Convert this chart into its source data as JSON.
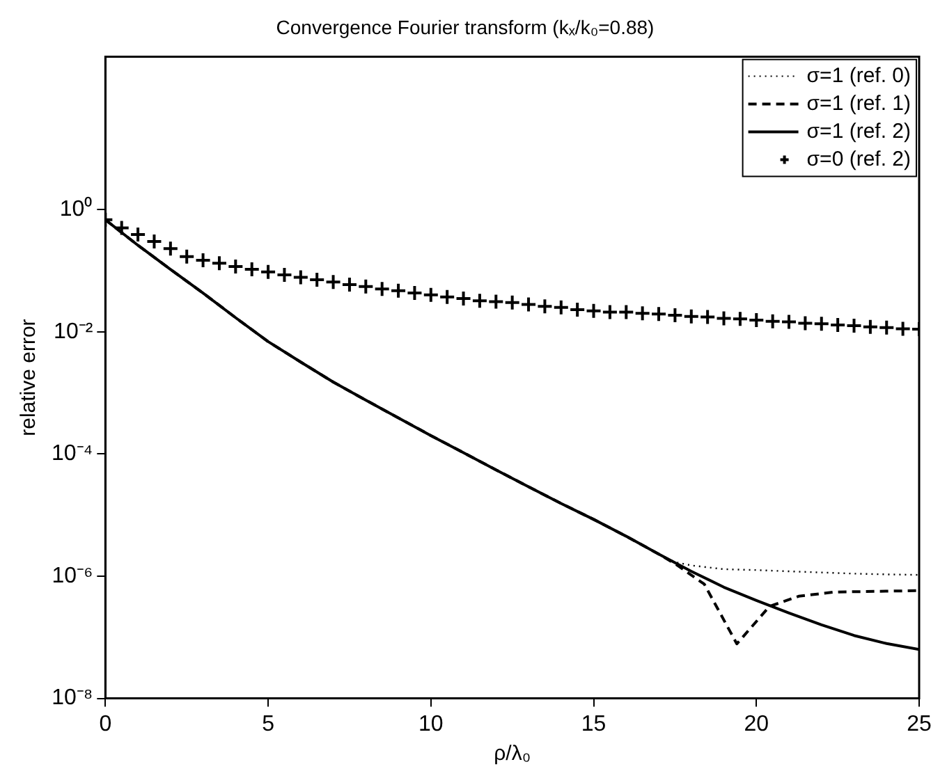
{
  "chart_data": {
    "type": "line",
    "title": "Convergence Fourier transform (kₓ/k₀=0.88)",
    "xlabel": "ρ/λ₀",
    "ylabel": "relative error",
    "log": "y",
    "grid": false,
    "legend": "top right",
    "xlim": [
      0,
      25
    ],
    "xticks": [
      0,
      5,
      10,
      15,
      20,
      25
    ],
    "ylim": [
      1e-08,
      316
    ],
    "yticks": [
      {
        "value": 1e-08,
        "label": "10⁻⁸"
      },
      {
        "value": 1e-06,
        "label": "10⁻⁶"
      },
      {
        "value": 0.0001,
        "label": "10⁻⁴"
      },
      {
        "value": 0.01,
        "label": "10⁻²"
      },
      {
        "value": 1,
        "label": "10⁰"
      }
    ],
    "series": [
      {
        "name": "σ=1 (ref. 0)",
        "line_style": "dotted",
        "marker": "none",
        "color": "#000000",
        "x": [
          0,
          1,
          2,
          3,
          4,
          5,
          6,
          7,
          8,
          9,
          10,
          11,
          12,
          13,
          14,
          15,
          16,
          17,
          17.5,
          18,
          19,
          20,
          21,
          22,
          23,
          24,
          25
        ],
        "values": [
          0.68,
          0.26,
          0.105,
          0.043,
          0.017,
          0.0069,
          0.0032,
          0.0015,
          0.00076,
          0.00039,
          0.0002,
          0.000105,
          5.5e-05,
          2.9e-05,
          1.55e-05,
          8.5e-06,
          4.5e-06,
          2.3e-06,
          1.7e-06,
          1.5e-06,
          1.3e-06,
          1.26e-06,
          1.2e-06,
          1.15e-06,
          1.1e-06,
          1.07e-06,
          1.05e-06
        ]
      },
      {
        "name": "σ=1 (ref. 1)",
        "line_style": "dashed",
        "marker": "none",
        "color": "#000000",
        "x": [
          0,
          1,
          2,
          3,
          4,
          5,
          6,
          7,
          8,
          9,
          10,
          11,
          12,
          13,
          14,
          15,
          16,
          17,
          17.5,
          18.4,
          19.4,
          20.4,
          21.3,
          22.4,
          25
        ],
        "values": [
          0.68,
          0.26,
          0.105,
          0.043,
          0.017,
          0.0069,
          0.0032,
          0.0015,
          0.00076,
          0.00039,
          0.0002,
          0.000105,
          5.5e-05,
          2.9e-05,
          1.55e-05,
          8.5e-06,
          4.5e-06,
          2.3e-06,
          1.6e-06,
          7.4e-07,
          7.8e-08,
          3.2e-07,
          4.7e-07,
          5.5e-07,
          5.8e-07
        ]
      },
      {
        "name": "σ=1 (ref. 2)",
        "line_style": "solid",
        "marker": "none",
        "color": "#000000",
        "x": [
          0,
          1,
          2,
          3,
          4,
          5,
          6,
          7,
          8,
          9,
          10,
          11,
          12,
          13,
          14,
          15,
          16,
          17,
          18,
          19,
          20,
          21,
          22,
          23,
          24,
          25
        ],
        "values": [
          0.68,
          0.26,
          0.105,
          0.043,
          0.017,
          0.0069,
          0.0032,
          0.0015,
          0.00076,
          0.00039,
          0.0002,
          0.000105,
          5.5e-05,
          2.9e-05,
          1.55e-05,
          8.5e-06,
          4.5e-06,
          2.3e-06,
          1.2e-06,
          6.6e-07,
          4e-07,
          2.5e-07,
          1.6e-07,
          1.07e-07,
          7.9e-08,
          6.3e-08
        ]
      },
      {
        "name": "σ=0 (ref. 2)",
        "type": "scatter",
        "marker": "cross",
        "color": "#000000",
        "x": [
          0,
          0.5,
          1,
          1.5,
          2,
          2.5,
          3,
          3.5,
          4,
          4.5,
          5,
          5.5,
          6,
          6.5,
          7,
          7.5,
          8,
          8.5,
          9,
          9.5,
          10,
          10.5,
          11,
          11.5,
          12,
          12.5,
          13,
          13.5,
          14,
          14.5,
          15,
          15.5,
          16,
          16.5,
          17,
          17.5,
          18,
          18.5,
          19,
          19.5,
          20,
          20.5,
          21,
          21.5,
          22,
          22.5,
          23,
          23.5,
          24,
          24.5,
          25
        ],
        "values": [
          0.68,
          0.5,
          0.39,
          0.3,
          0.23,
          0.17,
          0.148,
          0.132,
          0.117,
          0.105,
          0.095,
          0.085,
          0.078,
          0.071,
          0.065,
          0.059,
          0.055,
          0.05,
          0.047,
          0.043,
          0.04,
          0.037,
          0.035,
          0.032,
          0.031,
          0.03,
          0.028,
          0.026,
          0.025,
          0.023,
          0.022,
          0.021,
          0.021,
          0.02,
          0.0195,
          0.0186,
          0.0178,
          0.0174,
          0.0166,
          0.0162,
          0.0155,
          0.0148,
          0.0145,
          0.0138,
          0.0135,
          0.0129,
          0.0126,
          0.012,
          0.0117,
          0.0112,
          0.011
        ]
      }
    ]
  }
}
